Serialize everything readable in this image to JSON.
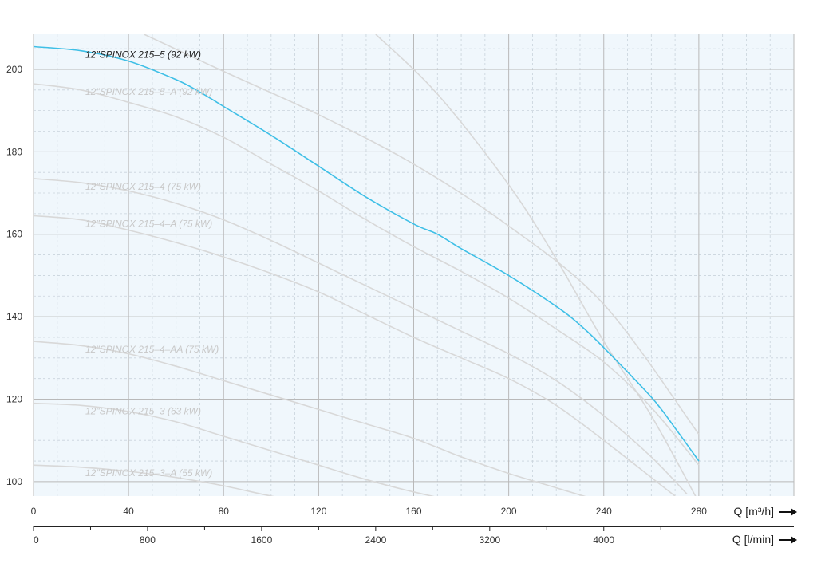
{
  "chart_data": {
    "type": "line",
    "x_axis": {
      "label": "Q [m³/h]",
      "ticks": [
        0,
        40,
        80,
        120,
        160,
        200,
        240,
        280
      ],
      "range": [
        0,
        320
      ]
    },
    "x2_axis": {
      "label": "Q [l/min]",
      "ticks": [
        0,
        800,
        1600,
        2400,
        3200,
        4000
      ]
    },
    "y_axis": {
      "label": "",
      "ticks": [
        100,
        120,
        140,
        160,
        180,
        200
      ],
      "range": [
        96.5,
        208.5
      ]
    },
    "grid": true,
    "colors": {
      "highlight": "#3ebfe6",
      "muted": "#d8d8d8",
      "muted_label": "#c8c8c8",
      "plot_bg": "#f0f7fc"
    },
    "series": [
      {
        "name": "12\"SPINOX 215–5 (92 kW)",
        "highlight": true,
        "x": [
          0,
          20,
          40,
          60,
          70,
          80,
          100,
          120,
          140,
          160,
          170,
          180,
          200,
          220,
          230,
          240,
          260,
          270,
          280
        ],
        "y": [
          205.5,
          204.5,
          202,
          197.5,
          194.5,
          191,
          184,
          176.5,
          169,
          162.5,
          160,
          156.5,
          150,
          142.5,
          138,
          132.5,
          120.5,
          113,
          105
        ]
      },
      {
        "name": "12\"SPINOX 215–5–A (92 kW)",
        "highlight": false,
        "x": [
          0,
          20,
          40,
          60,
          80,
          100,
          120,
          140,
          160,
          180,
          200,
          220,
          240,
          260,
          280
        ],
        "y": [
          196.5,
          195,
          192,
          188.5,
          183.5,
          177,
          170.5,
          163.5,
          157,
          151,
          144.5,
          137,
          129,
          118,
          104
        ]
      },
      {
        "name": "12\"SPINOX 215–4 (75 kW)",
        "highlight": false,
        "x": [
          0,
          20,
          40,
          60,
          80,
          100,
          120,
          140,
          160,
          180,
          200,
          220,
          240,
          260,
          275
        ],
        "y": [
          173.5,
          172.5,
          170.5,
          167.5,
          163.5,
          158.5,
          153,
          147.5,
          142,
          136.5,
          131,
          124.5,
          116,
          106,
          97
        ]
      },
      {
        "name": "12\"SPINOX 215–4–A (75 kW)",
        "highlight": false,
        "x": [
          0,
          20,
          40,
          60,
          80,
          100,
          120,
          140,
          160,
          180,
          200,
          220,
          240,
          260,
          270
        ],
        "y": [
          164.5,
          163.5,
          161,
          158,
          154.5,
          150.5,
          146,
          140.5,
          135,
          130,
          125,
          118.5,
          110,
          101,
          96.5
        ]
      },
      {
        "name": "12\"SPINOX 215–4–AA (75 kW)",
        "highlight": false,
        "x": [
          0,
          20,
          40,
          60,
          80,
          100,
          120,
          140,
          160,
          180,
          200,
          220,
          240,
          255
        ],
        "y": [
          134,
          133,
          131,
          128,
          124.5,
          121,
          117.5,
          114,
          110.5,
          106,
          102,
          98.5,
          95,
          92
        ]
      },
      {
        "name": "12\"SPINOX 215–3 (63 kW)",
        "highlight": false,
        "x": [
          0,
          20,
          40,
          60,
          80,
          100,
          120,
          140,
          160,
          180,
          200
        ],
        "y": [
          119,
          118.5,
          117,
          114.5,
          111,
          107.5,
          104,
          100.5,
          97.5,
          95,
          93
        ]
      },
      {
        "name": "12\"SPINOX 215–3–A (55 kW)",
        "highlight": false,
        "x": [
          0,
          20,
          40,
          60,
          80,
          100,
          120,
          140,
          160
        ],
        "y": [
          104,
          103.5,
          102.5,
          101,
          99,
          96.5,
          94.5,
          92.5,
          91
        ]
      }
    ],
    "unlabeled_lines": [
      {
        "x": [
          46.5,
          80,
          120,
          160,
          200,
          240,
          280
        ],
        "y": [
          208.5,
          199.5,
          189,
          177,
          162,
          143,
          111.5
        ]
      },
      {
        "x": [
          144,
          170,
          200,
          220,
          240,
          260,
          280
        ],
        "y": [
          208.5,
          194,
          172,
          154,
          134,
          116,
          95
        ]
      }
    ]
  }
}
